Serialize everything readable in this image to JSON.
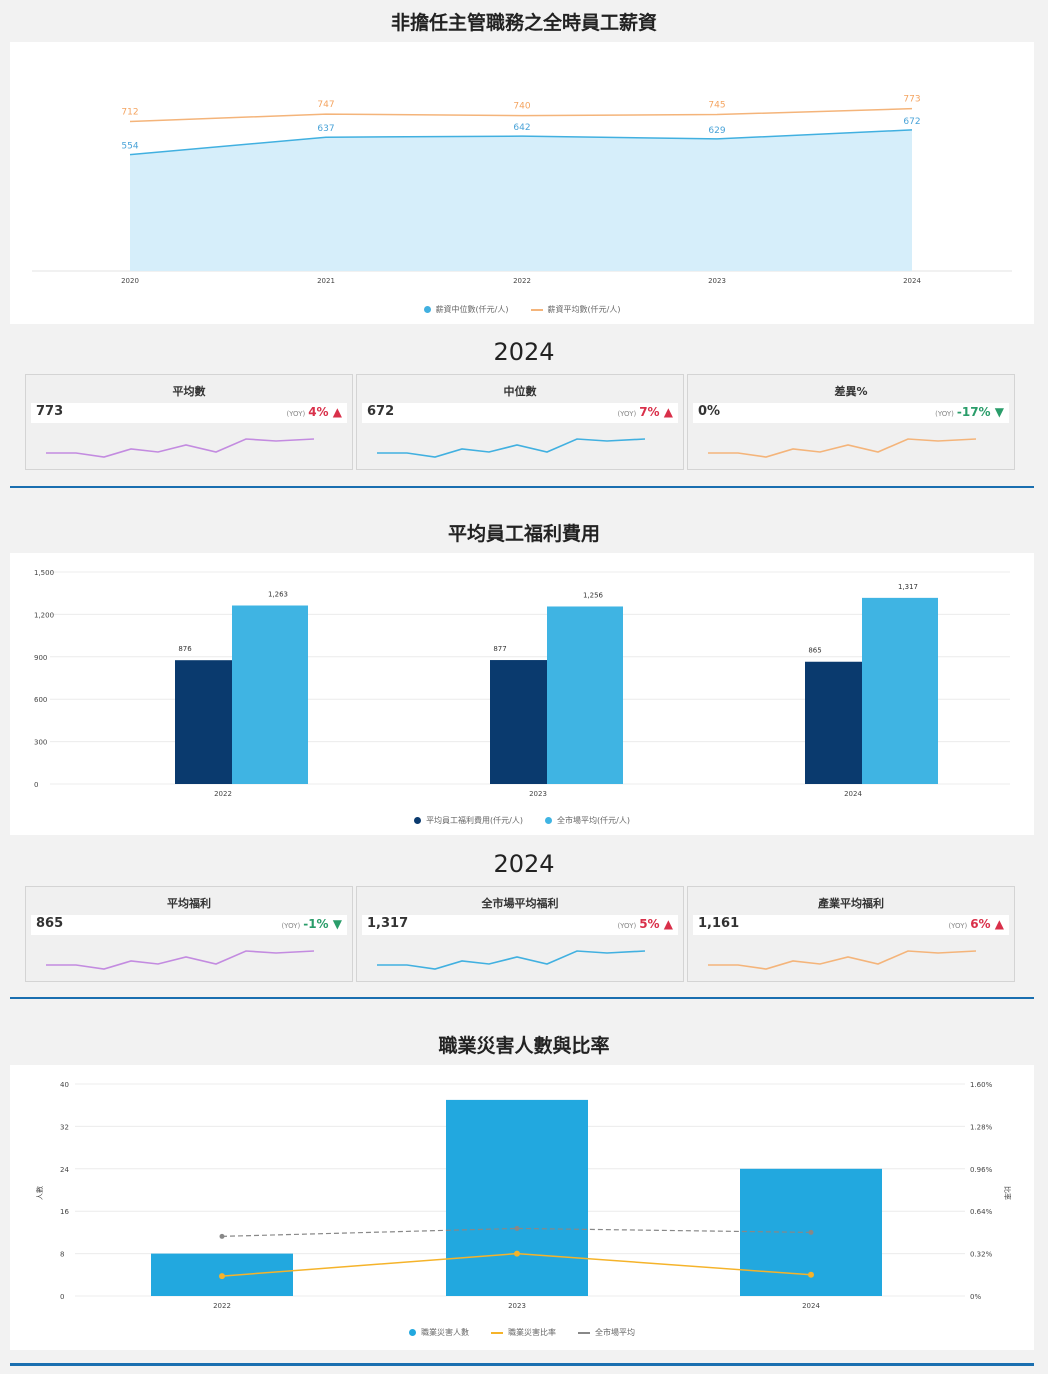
{
  "colors": {
    "orange": "#f4b47a",
    "blue_line": "#41b0e0",
    "area": "#d6eefa",
    "navy": "#0a3a6e",
    "mid_blue": "#1ea0d8",
    "light_blue": "#3fb4e3",
    "bar_blue": "#22a8df",
    "purple": "#c38be0",
    "gold": "#f5b32a",
    "grey_dash": "#888888",
    "up": "#d9304a",
    "down": "#2a9d6a"
  },
  "sec1": {
    "title": "非擔任主管職務之全時員工薪資",
    "year": "2024",
    "legend": [
      "薪資中位數(仟元/人)",
      "薪資平均數(仟元/人)"
    ],
    "cards": [
      {
        "title": "平均數",
        "value": "773",
        "yoy_label": "(YOY)",
        "yoy": "4%",
        "arrow": "▲",
        "dir": "up",
        "spark_color": "#c38be0"
      },
      {
        "title": "中位數",
        "value": "672",
        "yoy_label": "(YOY)",
        "yoy": "7%",
        "arrow": "▲",
        "dir": "up",
        "spark_color": "#41b0e0"
      },
      {
        "title": "差異%",
        "value": "0%",
        "yoy_label": "(YOY)",
        "yoy": "-17%",
        "arrow": "▼",
        "dir": "down",
        "spark_color": "#f4b47a"
      }
    ]
  },
  "sec2": {
    "title": "平均員工福利費用",
    "year": "2024",
    "legend": [
      "平均員工福利費用(仟元/人)",
      "全市場平均(仟元/人)"
    ],
    "cards": [
      {
        "title": "平均福利",
        "value": "865",
        "yoy_label": "(YOY)",
        "yoy": "-1%",
        "arrow": "▼",
        "dir": "down",
        "spark_color": "#c38be0"
      },
      {
        "title": "全市場平均福利",
        "value": "1,317",
        "yoy_label": "(YOY)",
        "yoy": "5%",
        "arrow": "▲",
        "dir": "up",
        "spark_color": "#41b0e0"
      },
      {
        "title": "產業平均福利",
        "value": "1,161",
        "yoy_label": "(YOY)",
        "yoy": "6%",
        "arrow": "▲",
        "dir": "up",
        "spark_color": "#f4b47a"
      }
    ]
  },
  "sec3": {
    "title": "職業災害人數與比率",
    "legend": [
      "職業災害人數",
      "職業災害比率",
      "全市場平均"
    ],
    "y_left_label": "人數",
    "y_right_label": "比率"
  },
  "chart_data": [
    {
      "type": "area",
      "categories": [
        "2020",
        "2021",
        "2022",
        "2023",
        "2024"
      ],
      "series": [
        {
          "name": "薪資中位數(仟元/人)",
          "values": [
            554,
            637,
            642,
            629,
            672
          ],
          "labels": [
            "554",
            "637",
            "642",
            "629",
            "672"
          ]
        },
        {
          "name": "薪資平均數(仟元/人)",
          "values": [
            712,
            747,
            740,
            745,
            773
          ],
          "labels": [
            "712",
            "747",
            "740",
            "745",
            "773"
          ]
        }
      ],
      "ylim": [
        0,
        900
      ]
    },
    {
      "type": "bar",
      "categories": [
        "2022",
        "2023",
        "2024"
      ],
      "series": [
        {
          "name": "平均員工福利費用(仟元/人)",
          "values": [
            876,
            877,
            865
          ],
          "labels": [
            "876",
            "877",
            "865"
          ]
        },
        {
          "name": "全市場平均(仟元/人)",
          "values": [
            1263,
            1256,
            1317
          ],
          "labels": [
            "1,263",
            "1,256",
            "1,317"
          ]
        }
      ],
      "ylim": [
        0,
        1500
      ],
      "yticks": [
        0,
        300,
        600,
        900,
        1200,
        1500
      ],
      "ytick_labels": [
        "0",
        "300",
        "600",
        "900",
        "1,200",
        "1,500"
      ]
    },
    {
      "type": "bar",
      "categories": [
        "2022",
        "2023",
        "2024"
      ],
      "bars": {
        "name": "職業災害人數",
        "values": [
          8,
          37,
          24
        ]
      },
      "lines": [
        {
          "name": "職業災害比率",
          "values": [
            0.15,
            0.32,
            0.16
          ]
        },
        {
          "name": "全市場平均",
          "values": [
            0.45,
            0.51,
            0.48
          ]
        }
      ],
      "ylim_left": [
        0,
        40
      ],
      "yticks_left": [
        "0",
        "8",
        "16",
        "24",
        "32",
        "40"
      ],
      "ylim_right": [
        0,
        1.6
      ],
      "yticks_right": [
        "0%",
        "0.32%",
        "0.64%",
        "0.96%",
        "1.28%",
        "1.60%"
      ]
    }
  ]
}
